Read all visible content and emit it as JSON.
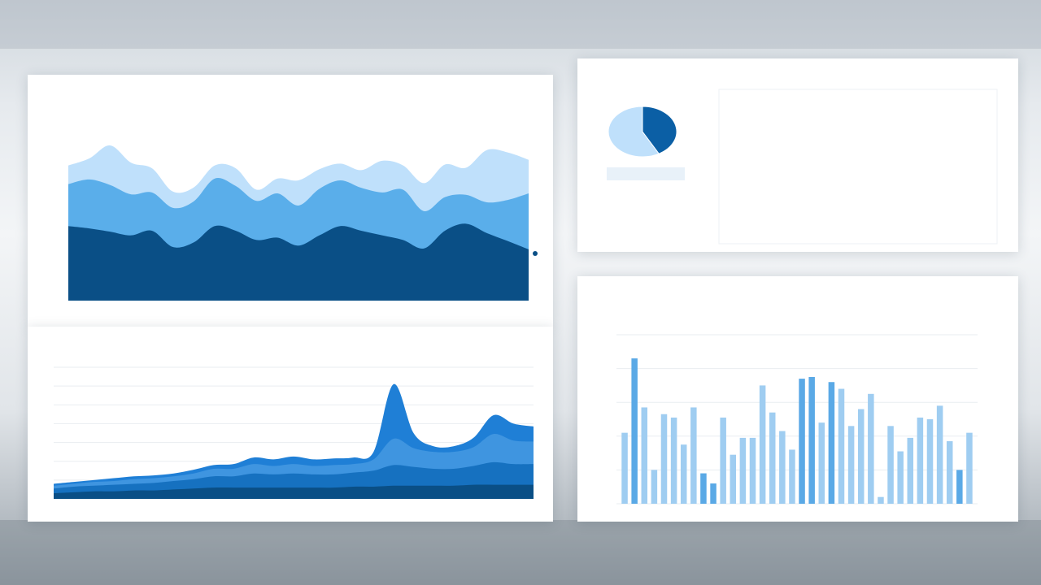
{
  "colors": {
    "light": "#bfe0fb",
    "mid": "#5aaeea",
    "dark": "#0a4f86",
    "bar_light": "#9fcdf1",
    "bar_mid": "#5aa9e6",
    "pie_light": "#bfe0fb",
    "pie_dark": "#0b5fa5"
  },
  "panels": {
    "top_left": {
      "title": "",
      "subtitle": ""
    },
    "bottom_left": {
      "title": ""
    },
    "top_right": {
      "title": "",
      "subtitle": "",
      "pie_label": "",
      "paragraph_1": "",
      "paragraph_2": ""
    },
    "bottom_right": {
      "title": "",
      "subtitle": ""
    }
  },
  "chart_data": [
    {
      "type": "area",
      "stacked": true,
      "x": [
        0,
        1,
        2,
        3,
        4,
        5,
        6,
        7,
        8,
        9,
        10,
        11,
        12,
        13,
        14,
        15,
        16,
        17,
        18,
        19,
        20,
        21,
        22
      ],
      "series": [
        {
          "values": [
            160,
            155,
            148,
            140,
            150,
            115,
            125,
            160,
            150,
            130,
            135,
            118,
            140,
            160,
            150,
            140,
            130,
            112,
            150,
            165,
            145,
            128,
            110
          ]
        },
        {
          "values": [
            90,
            105,
            100,
            88,
            82,
            84,
            88,
            102,
            96,
            84,
            95,
            86,
            100,
            98,
            92,
            92,
            108,
            80,
            72,
            62,
            66,
            88,
            120
          ]
        },
        {
          "values": [
            40,
            45,
            85,
            68,
            52,
            35,
            30,
            28,
            38,
            24,
            32,
            54,
            42,
            36,
            38,
            68,
            52,
            60,
            70,
            58,
            112,
            102,
            72
          ]
        }
      ],
      "x_ticks": [
        "",
        "",
        "",
        "",
        "",
        "",
        ""
      ],
      "y_ticks": [
        "",
        "",
        "",
        "",
        "",
        "",
        "",
        ""
      ],
      "grid": false
    },
    {
      "type": "area",
      "stacked": true,
      "x": [
        0,
        1,
        2,
        3,
        4,
        5,
        6,
        7,
        8,
        9,
        10,
        11,
        12,
        13,
        14,
        15,
        16,
        17,
        18,
        19,
        20,
        21,
        22,
        23,
        24
      ],
      "series": [
        {
          "values": [
            6,
            7,
            8,
            8,
            9,
            9,
            10,
            11,
            12,
            12,
            12,
            12,
            12,
            12,
            12,
            13,
            13,
            14,
            14,
            14,
            14,
            15,
            15,
            15,
            15
          ]
        },
        {
          "values": [
            5,
            6,
            6,
            7,
            7,
            8,
            9,
            10,
            12,
            12,
            15,
            14,
            15,
            14,
            14,
            15,
            17,
            22,
            20,
            18,
            18,
            20,
            24,
            22,
            22
          ]
        },
        {
          "values": [
            3,
            3,
            4,
            4,
            5,
            5,
            5,
            6,
            8,
            8,
            10,
            9,
            10,
            9,
            10,
            9,
            12,
            28,
            20,
            18,
            18,
            20,
            30,
            25,
            24
          ]
        },
        {
          "values": [
            2,
            2,
            2,
            3,
            3,
            3,
            3,
            4,
            4,
            5,
            7,
            7,
            8,
            7,
            7,
            7,
            8,
            58,
            16,
            6,
            6,
            10,
            20,
            18,
            16
          ]
        }
      ],
      "x_ticks": [
        "",
        "",
        "",
        "",
        "",
        "",
        "",
        "",
        "",
        ""
      ],
      "y_ticks": [
        "",
        "",
        "",
        "",
        "",
        "",
        "",
        ""
      ],
      "grid": true
    },
    {
      "type": "bar",
      "categories": [
        "",
        "",
        "",
        "",
        "",
        "",
        "",
        "",
        "",
        "",
        "",
        "",
        "",
        "",
        "",
        "",
        "",
        "",
        "",
        "",
        "",
        "",
        "",
        "",
        "",
        "",
        "",
        "",
        "",
        "",
        "",
        "",
        "",
        "",
        "",
        ""
      ],
      "values": [
        2100,
        4300,
        2850,
        1000,
        2650,
        2550,
        1750,
        2850,
        900,
        600,
        2550,
        1450,
        1950,
        1950,
        3500,
        2700,
        2150,
        1600,
        3700,
        3750,
        2400,
        3600,
        3400,
        2300,
        2800,
        3250,
        200,
        2300,
        1550,
        1950,
        2550,
        2500,
        2900,
        1850,
        1000,
        2100
      ],
      "highlight": [
        false,
        true,
        false,
        false,
        false,
        false,
        false,
        false,
        true,
        true,
        false,
        false,
        false,
        false,
        false,
        false,
        false,
        false,
        true,
        true,
        false,
        true,
        false,
        false,
        false,
        false,
        false,
        false,
        false,
        false,
        false,
        false,
        false,
        false,
        true,
        false
      ],
      "y_ticks_left": [
        "",
        "",
        "",
        "",
        "",
        ""
      ],
      "y_ticks_right": [
        "",
        "",
        "",
        "",
        "",
        ""
      ],
      "ylim": [
        0,
        5000
      ],
      "grid": true
    },
    {
      "type": "pie",
      "values": [
        58,
        42
      ]
    }
  ]
}
